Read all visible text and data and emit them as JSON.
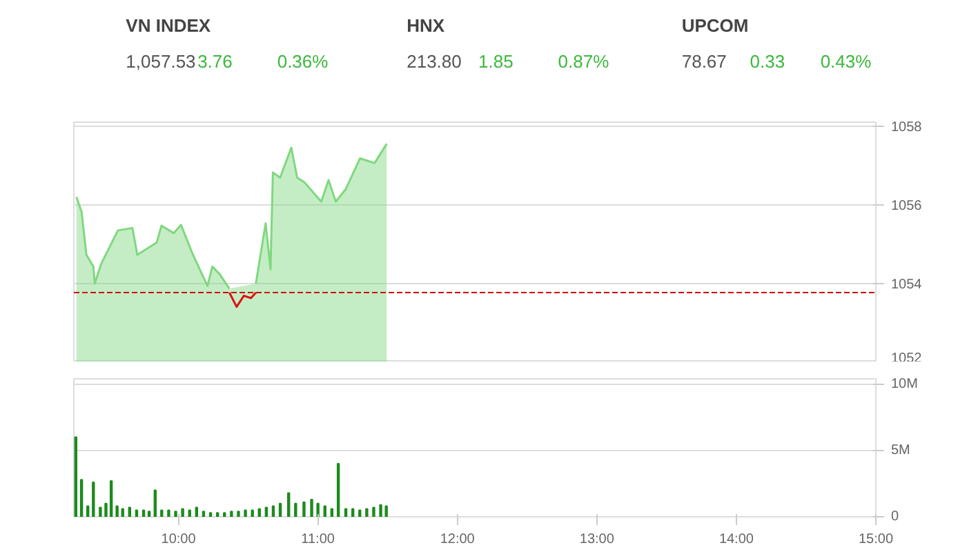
{
  "chart_data": [
    {
      "type": "other",
      "annotations": [
        "VN INDEX",
        "1,057.53",
        "3.76",
        "0.36%",
        "HNX",
        "213.80",
        "1.85",
        "0.87%",
        "UPCOM",
        "78.67",
        "0.33",
        "0.43%"
      ]
    },
    {
      "type": "area",
      "xlim": [
        9.25,
        15
      ],
      "ylim": [
        1052,
        1058.1
      ],
      "yticks": [
        1052,
        1054,
        1056,
        1058
      ],
      "grid": "y",
      "tick_labels": "y",
      "ref_lines": [
        {
          "axis": "y",
          "value": 1053.77,
          "color": "#cc0000",
          "line_style": "dashed"
        }
      ],
      "series": [
        {
          "type": "area",
          "color": "#7fd87f",
          "x": [
            9.268,
            9.305,
            9.34,
            9.39,
            9.4,
            9.445,
            9.566,
            9.67,
            9.705,
            9.844,
            9.878,
            9.966,
            10.018,
            10.104,
            10.208,
            10.243,
            10.295,
            10.365,
            10.417,
            10.555,
            10.625,
            10.66,
            10.677,
            10.729,
            10.809,
            10.851,
            10.903,
            11.024,
            11.076,
            11.128,
            11.198,
            11.302,
            11.406,
            11.493
          ],
          "values": [
            1056.2,
            1055.83,
            1054.73,
            1054.43,
            1054.0,
            1054.49,
            1055.35,
            1055.41,
            1054.73,
            1055.04,
            1055.47,
            1055.28,
            1055.49,
            1054.73,
            1053.94,
            1054.43,
            1054.24,
            1053.87,
            null,
            1054.0,
            1055.53,
            1054.36,
            1056.82,
            1056.69,
            1057.45,
            1056.69,
            1056.57,
            1056.08,
            1056.63,
            1056.08,
            1056.39,
            1057.18,
            1057.06,
            1057.55
          ]
        },
        {
          "type": "line",
          "color": "#dd1111",
          "x": [
            10.365,
            10.417,
            10.469,
            10.52,
            10.555
          ],
          "values": [
            1053.77,
            1053.41,
            1053.69,
            1053.63,
            1053.77
          ]
        }
      ]
    },
    {
      "type": "bar",
      "xlim": [
        9.25,
        15
      ],
      "ylim": [
        0,
        10.4
      ],
      "grid": "y",
      "xticks": [
        {
          "value": 10,
          "label": "10:00"
        },
        {
          "value": 11,
          "label": "11:00"
        },
        {
          "value": 12,
          "label": "12:00"
        },
        {
          "value": 13,
          "label": "13:00"
        },
        {
          "value": 14,
          "label": "14:00"
        },
        {
          "value": 15,
          "label": "15:00"
        }
      ],
      "yticks": [
        {
          "value": 0,
          "label": "0"
        },
        {
          "value": 5,
          "label": "5M"
        },
        {
          "value": 10,
          "label": "10M"
        }
      ],
      "series": [
        {
          "color": "#1e8a1e",
          "x": [
            9.264,
            9.305,
            9.35,
            9.39,
            9.44,
            9.48,
            9.518,
            9.56,
            9.6,
            9.65,
            9.7,
            9.75,
            9.79,
            9.833,
            9.88,
            9.93,
            9.98,
            10.03,
            10.08,
            10.13,
            10.18,
            10.23,
            10.28,
            10.33,
            10.38,
            10.43,
            10.48,
            10.53,
            10.58,
            10.63,
            10.68,
            10.73,
            10.79,
            10.84,
            10.9,
            10.955,
            11.0,
            11.05,
            11.1,
            11.146,
            11.2,
            11.25,
            11.3,
            11.35,
            11.4,
            11.45,
            11.49
          ],
          "values": [
            6.0,
            2.8,
            0.8,
            2.6,
            0.7,
            1.0,
            2.7,
            0.8,
            0.6,
            0.7,
            0.5,
            0.5,
            0.4,
            2.0,
            0.5,
            0.5,
            0.4,
            0.6,
            0.5,
            0.7,
            0.4,
            0.3,
            0.3,
            0.3,
            0.4,
            0.4,
            0.5,
            0.5,
            0.6,
            0.7,
            0.8,
            1.0,
            1.8,
            1.0,
            1.1,
            1.3,
            1.0,
            0.8,
            0.6,
            4.0,
            0.6,
            0.6,
            0.5,
            0.6,
            0.7,
            0.9,
            0.8
          ]
        }
      ]
    }
  ]
}
